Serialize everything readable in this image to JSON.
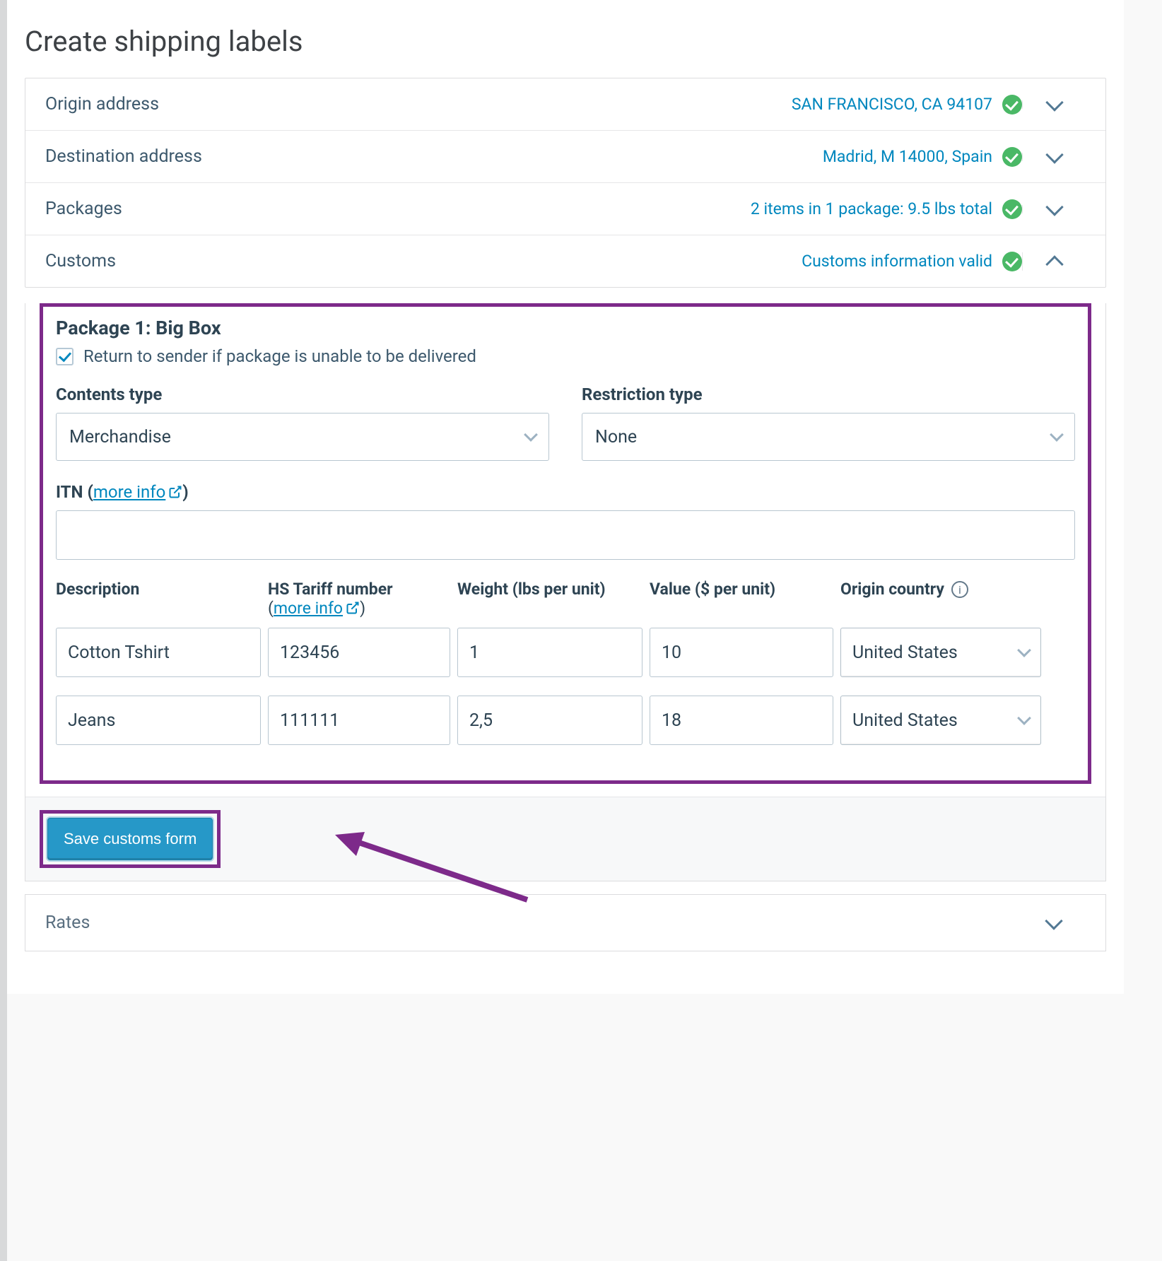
{
  "title": "Create shipping labels",
  "colors": {
    "accent": "#0087be",
    "success": "#4ab866",
    "highlight_border": "#7d2a8a",
    "button_bg": "#2698c8",
    "text_primary": "#2e4453",
    "text_muted": "#3d596d",
    "border": "#dcdcde"
  },
  "sections": {
    "origin": {
      "label": "Origin address",
      "status": "SAN FRANCISCO, CA  94107",
      "expanded": false
    },
    "destination": {
      "label": "Destination address",
      "status": "Madrid, M  14000, Spain",
      "expanded": false
    },
    "packages": {
      "label": "Packages",
      "status": "2 items in 1 package: 9.5 lbs total",
      "expanded": false
    },
    "customs": {
      "label": "Customs",
      "status": "Customs information valid",
      "expanded": true
    },
    "rates": {
      "label": "Rates"
    }
  },
  "customs": {
    "package_title": "Package 1: Big Box",
    "return_checkbox": {
      "checked": true,
      "label": "Return to sender if package is unable to be delivered"
    },
    "contents_type": {
      "label": "Contents type",
      "value": "Merchandise"
    },
    "restriction_type": {
      "label": "Restriction type",
      "value": "None"
    },
    "itn": {
      "label_prefix": "ITN (",
      "link_text": "more info",
      "label_suffix": ")",
      "value": ""
    },
    "columns": {
      "description": "Description",
      "hs": "HS Tariff number",
      "hs_link": "more info",
      "weight": "Weight (lbs per unit)",
      "value": "Value ($ per unit)",
      "origin": "Origin country"
    },
    "items": [
      {
        "description": "Cotton Tshirt",
        "hs": "123456",
        "weight": "1",
        "value": "10",
        "origin": "United States"
      },
      {
        "description": "Jeans",
        "hs": "111111",
        "weight": "2,5",
        "value": "18",
        "origin": "United States"
      }
    ],
    "save_button": "Save customs form"
  }
}
